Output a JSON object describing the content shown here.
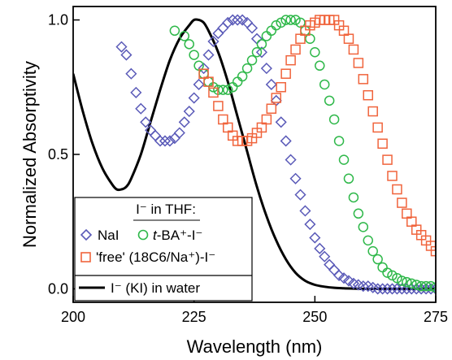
{
  "chart_data": {
    "type": "scatter",
    "xlabel": "Wavelength (nm)",
    "ylabel": "Normalized Absorptivity",
    "xlim": [
      200,
      275
    ],
    "ylim": [
      -0.05,
      1.05
    ],
    "xticks": [
      "200",
      "225",
      "250",
      "275"
    ],
    "yticks": [
      "0.0",
      "0.5",
      "1.0"
    ],
    "xtick_values": [
      200,
      225,
      250,
      275
    ],
    "ytick_values": [
      0.0,
      0.5,
      1.0
    ],
    "legend": {
      "placement": "bottom-left",
      "header": "I⁻ in THF:",
      "entries": {
        "nai": "NaI",
        "tba_prefix": "t",
        "tba_rest": "-BA⁺-I⁻",
        "free": "'free' (18C6/Na⁺)-I⁻",
        "water": "I⁻ (KI) in water"
      }
    },
    "series": [
      {
        "name": "NaI",
        "marker": "diamond",
        "color": "#5a5ab8",
        "x": [
          210,
          211,
          212,
          213,
          214,
          215,
          216,
          217,
          218,
          219,
          220,
          221,
          222,
          223,
          224,
          225,
          226,
          227,
          228,
          229,
          230,
          231,
          232,
          233,
          234,
          235,
          236,
          237,
          238,
          239,
          240,
          241,
          242,
          243,
          244,
          245,
          246,
          247,
          248,
          249,
          250,
          251,
          252,
          253,
          254,
          255,
          256,
          257,
          258,
          259,
          260,
          261,
          262,
          263,
          264,
          265,
          266,
          267,
          268,
          269,
          270,
          271,
          272,
          273,
          274,
          275
        ],
        "y": [
          0.9,
          0.87,
          0.8,
          0.73,
          0.67,
          0.62,
          0.59,
          0.57,
          0.55,
          0.55,
          0.55,
          0.56,
          0.58,
          0.62,
          0.66,
          0.71,
          0.76,
          0.82,
          0.87,
          0.92,
          0.95,
          0.97,
          0.99,
          1.0,
          1.0,
          1.0,
          0.99,
          0.97,
          0.93,
          0.88,
          0.82,
          0.76,
          0.7,
          0.62,
          0.55,
          0.48,
          0.41,
          0.35,
          0.29,
          0.24,
          0.19,
          0.15,
          0.12,
          0.09,
          0.07,
          0.05,
          0.04,
          0.03,
          0.02,
          0.015,
          0.01,
          0.01,
          0.005,
          0.0,
          0.0,
          0.0,
          0.0,
          0.0,
          0.0,
          0.0,
          0.0,
          0.0,
          0.0,
          0.0,
          0.0,
          0.0
        ]
      },
      {
        "name": "t-BA⁺-I⁻",
        "marker": "circle",
        "color": "#2fb84a",
        "x": [
          221,
          223,
          224,
          225,
          226,
          227,
          228,
          229,
          230,
          231,
          232,
          233,
          234,
          235,
          236,
          237,
          238,
          239,
          240,
          241,
          242,
          243,
          244,
          245,
          246,
          247,
          248,
          249,
          250,
          251,
          252,
          253,
          254,
          255,
          256,
          257,
          258,
          259,
          260,
          261,
          262,
          263,
          264,
          265,
          266,
          267,
          268,
          269,
          270,
          271,
          272,
          273,
          274,
          275
        ],
        "y": [
          0.96,
          0.94,
          0.91,
          0.87,
          0.83,
          0.8,
          0.77,
          0.75,
          0.74,
          0.74,
          0.74,
          0.75,
          0.77,
          0.79,
          0.82,
          0.85,
          0.88,
          0.91,
          0.94,
          0.96,
          0.98,
          0.99,
          1.0,
          1.0,
          1.0,
          0.99,
          0.96,
          0.93,
          0.88,
          0.83,
          0.76,
          0.7,
          0.63,
          0.55,
          0.48,
          0.41,
          0.34,
          0.28,
          0.23,
          0.18,
          0.14,
          0.11,
          0.08,
          0.06,
          0.05,
          0.04,
          0.03,
          0.025,
          0.02,
          0.015,
          0.01,
          0.01,
          0.01,
          0.005
        ]
      },
      {
        "name": "'free' (18C6/Na⁺)-I⁻",
        "marker": "square",
        "color": "#f0643c",
        "x": [
          227,
          228,
          229,
          230,
          231,
          232,
          233,
          234,
          235,
          236,
          237,
          238,
          239,
          240,
          241,
          242,
          243,
          244,
          245,
          246,
          247,
          248,
          249,
          250,
          251,
          252,
          253,
          254,
          255,
          256,
          257,
          258,
          259,
          260,
          261,
          262,
          263,
          264,
          265,
          266,
          267,
          268,
          269,
          270,
          271,
          272,
          273,
          274,
          275
        ],
        "y": [
          0.8,
          0.77,
          0.73,
          0.68,
          0.63,
          0.6,
          0.57,
          0.55,
          0.55,
          0.55,
          0.56,
          0.58,
          0.6,
          0.63,
          0.67,
          0.71,
          0.75,
          0.8,
          0.85,
          0.89,
          0.93,
          0.96,
          0.98,
          0.99,
          1.0,
          1.0,
          1.0,
          1.0,
          0.98,
          0.96,
          0.93,
          0.89,
          0.84,
          0.78,
          0.72,
          0.66,
          0.6,
          0.54,
          0.48,
          0.42,
          0.37,
          0.32,
          0.28,
          0.25,
          0.22,
          0.2,
          0.18,
          0.16,
          0.14
        ]
      },
      {
        "name": "I⁻ (KI) in water",
        "marker": "line",
        "color": "#000000",
        "x": [
          200,
          202,
          204,
          206,
          208,
          209,
          210,
          211,
          212,
          214,
          216,
          218,
          220,
          222,
          224,
          225,
          226,
          227,
          228,
          230,
          232,
          234,
          236,
          238,
          240,
          242,
          244,
          246,
          248,
          250,
          252,
          254,
          256,
          258,
          260,
          264,
          268,
          272,
          275
        ],
        "y": [
          0.8,
          0.66,
          0.54,
          0.45,
          0.39,
          0.37,
          0.37,
          0.38,
          0.41,
          0.5,
          0.62,
          0.74,
          0.85,
          0.93,
          0.98,
          1.0,
          1.0,
          0.99,
          0.96,
          0.88,
          0.77,
          0.64,
          0.51,
          0.38,
          0.27,
          0.18,
          0.11,
          0.06,
          0.03,
          0.015,
          0.008,
          0.004,
          0.002,
          0.001,
          0.0,
          0.0,
          0.0,
          0.0,
          0.0
        ]
      }
    ]
  }
}
